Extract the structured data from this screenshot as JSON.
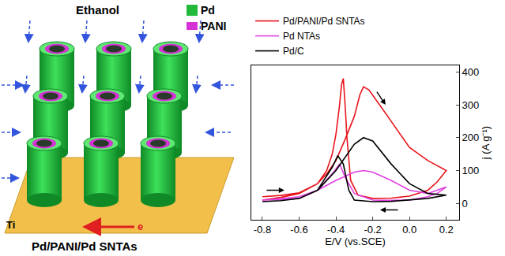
{
  "diagram": {
    "title": "Pd/PANI/Pd SNTAs",
    "labels": {
      "reactant": "Ethanol",
      "substrate": "Ti",
      "electron": "e"
    },
    "legend": [
      {
        "label": "Pd",
        "color": "#22b83a"
      },
      {
        "label": "PANI",
        "color": "#d633d6"
      }
    ]
  },
  "chart_data": {
    "type": "line",
    "x_label": "E/V (vs.SCE)",
    "y_label": "j (A g⁻¹)",
    "xlim": [
      -0.86,
      0.27
    ],
    "xticks": [
      -0.8,
      -0.6,
      -0.4,
      -0.2,
      {
        "value": 0,
        "label": "0.0"
      },
      0.2
    ],
    "ylim": [
      -50,
      420
    ],
    "yticks": [
      0,
      100,
      200,
      300,
      400
    ],
    "grid": false,
    "legend": "top",
    "series": [
      {
        "name": "Pd/PANI/Pd SNTAs",
        "color": "#e8141c",
        "x": [
          -0.8,
          -0.7,
          -0.6,
          -0.5,
          -0.45,
          -0.4,
          -0.35,
          -0.3,
          -0.27,
          -0.25,
          -0.22,
          -0.2,
          -0.15,
          -0.1,
          -0.05,
          0.0,
          0.1,
          0.2,
          0.15,
          0.1,
          0.0,
          -0.1,
          -0.2,
          -0.28,
          -0.32,
          -0.34,
          -0.35,
          -0.36,
          -0.37,
          -0.38,
          -0.4,
          -0.42,
          -0.45,
          -0.5,
          -0.6,
          -0.7,
          -0.8
        ],
        "values": [
          20,
          24,
          32,
          60,
          90,
          130,
          195,
          265,
          330,
          355,
          345,
          330,
          290,
          250,
          210,
          170,
          130,
          100,
          65,
          40,
          22,
          16,
          15,
          25,
          70,
          200,
          300,
          380,
          360,
          300,
          210,
          150,
          100,
          60,
          30,
          18,
          10
        ]
      },
      {
        "name": "Pd NTAs",
        "color": "#e040e0",
        "x": [
          -0.8,
          -0.7,
          -0.6,
          -0.5,
          -0.4,
          -0.3,
          -0.25,
          -0.2,
          -0.1,
          0.0,
          0.1,
          0.2,
          0.15,
          0.1,
          0.0,
          -0.1,
          -0.2,
          -0.3,
          -0.35,
          -0.38,
          -0.42,
          -0.5,
          -0.6,
          -0.7,
          -0.8
        ],
        "values": [
          10,
          14,
          20,
          40,
          70,
          95,
          100,
          95,
          70,
          40,
          30,
          50,
          30,
          20,
          10,
          9,
          10,
          30,
          80,
          120,
          90,
          40,
          15,
          11,
          10
        ]
      },
      {
        "name": "Pd/C",
        "color": "#000000",
        "x": [
          -0.8,
          -0.7,
          -0.6,
          -0.5,
          -0.4,
          -0.3,
          -0.25,
          -0.2,
          -0.1,
          0.0,
          0.1,
          0.2,
          0.1,
          0.0,
          -0.1,
          -0.2,
          -0.3,
          -0.33,
          -0.36,
          -0.39,
          -0.42,
          -0.5,
          -0.6,
          -0.7,
          -0.8
        ],
        "values": [
          5,
          8,
          15,
          40,
          100,
          180,
          200,
          190,
          120,
          60,
          30,
          25,
          15,
          10,
          6,
          5,
          10,
          40,
          120,
          145,
          110,
          40,
          15,
          8,
          5
        ]
      }
    ]
  }
}
